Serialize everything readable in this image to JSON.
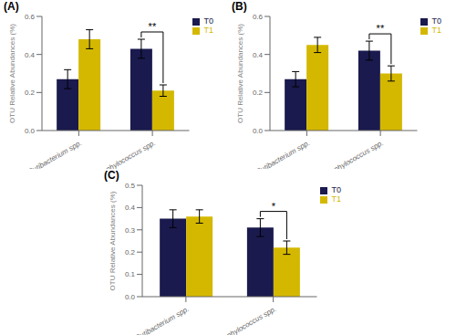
{
  "chart_data": [
    {
      "type": "bar",
      "title": "(A)",
      "categories": [
        "Cutibacterium spp.",
        "Staphylococcus spp."
      ],
      "series": [
        {
          "name": "T0",
          "color": "#1a1a4e",
          "values": [
            0.27,
            0.43
          ],
          "errors": [
            0.05,
            0.05
          ]
        },
        {
          "name": "T1",
          "color": "#d4b800",
          "values": [
            0.48,
            0.21
          ],
          "errors": [
            0.05,
            0.03
          ]
        }
      ],
      "ylabel": "OTU Relative Abundances (%)",
      "ylim": [
        0.0,
        0.6
      ],
      "yticks": [
        {
          "value": 0.0,
          "label": "0.0"
        },
        0.2,
        0.4,
        0.6
      ],
      "legend": "upper right",
      "annotations": [
        {
          "text": "**",
          "category": "Staphylococcus spp."
        }
      ]
    },
    {
      "type": "bar",
      "title": "(B)",
      "categories": [
        "Cutibacterium spp.",
        "Staphylococcus spp."
      ],
      "series": [
        {
          "name": "T0",
          "color": "#1a1a4e",
          "values": [
            0.27,
            0.42
          ],
          "errors": [
            0.04,
            0.05
          ]
        },
        {
          "name": "T1",
          "color": "#d4b800",
          "values": [
            0.45,
            0.3
          ],
          "errors": [
            0.04,
            0.04
          ]
        }
      ],
      "ylabel": "OTU Relative Abundances (%)",
      "ylim": [
        0.0,
        0.6
      ],
      "yticks": [
        {
          "value": 0.0,
          "label": "0.0"
        },
        0.2,
        0.4,
        0.6
      ],
      "legend": "upper right",
      "annotations": [
        {
          "text": "**",
          "category": "Staphylococcus spp."
        }
      ]
    },
    {
      "type": "bar",
      "title": "(C)",
      "categories": [
        "Cutibacterium spp.",
        "Staphylococcus spp."
      ],
      "series": [
        {
          "name": "T0",
          "color": "#1a1a4e",
          "values": [
            0.35,
            0.31
          ],
          "errors": [
            0.04,
            0.04
          ]
        },
        {
          "name": "T1",
          "color": "#d4b800",
          "values": [
            0.36,
            0.22
          ],
          "errors": [
            0.03,
            0.03
          ]
        }
      ],
      "ylabel": "OTU Relative Abundances (%)",
      "ylim": [
        0.0,
        0.5
      ],
      "yticks": [
        {
          "value": 0.0,
          "label": "0.0"
        },
        0.1,
        0.2,
        0.3,
        0.4,
        0.5
      ],
      "legend": "upper right",
      "annotations": [
        {
          "text": "*",
          "category": "Staphylococcus spp."
        }
      ]
    }
  ]
}
